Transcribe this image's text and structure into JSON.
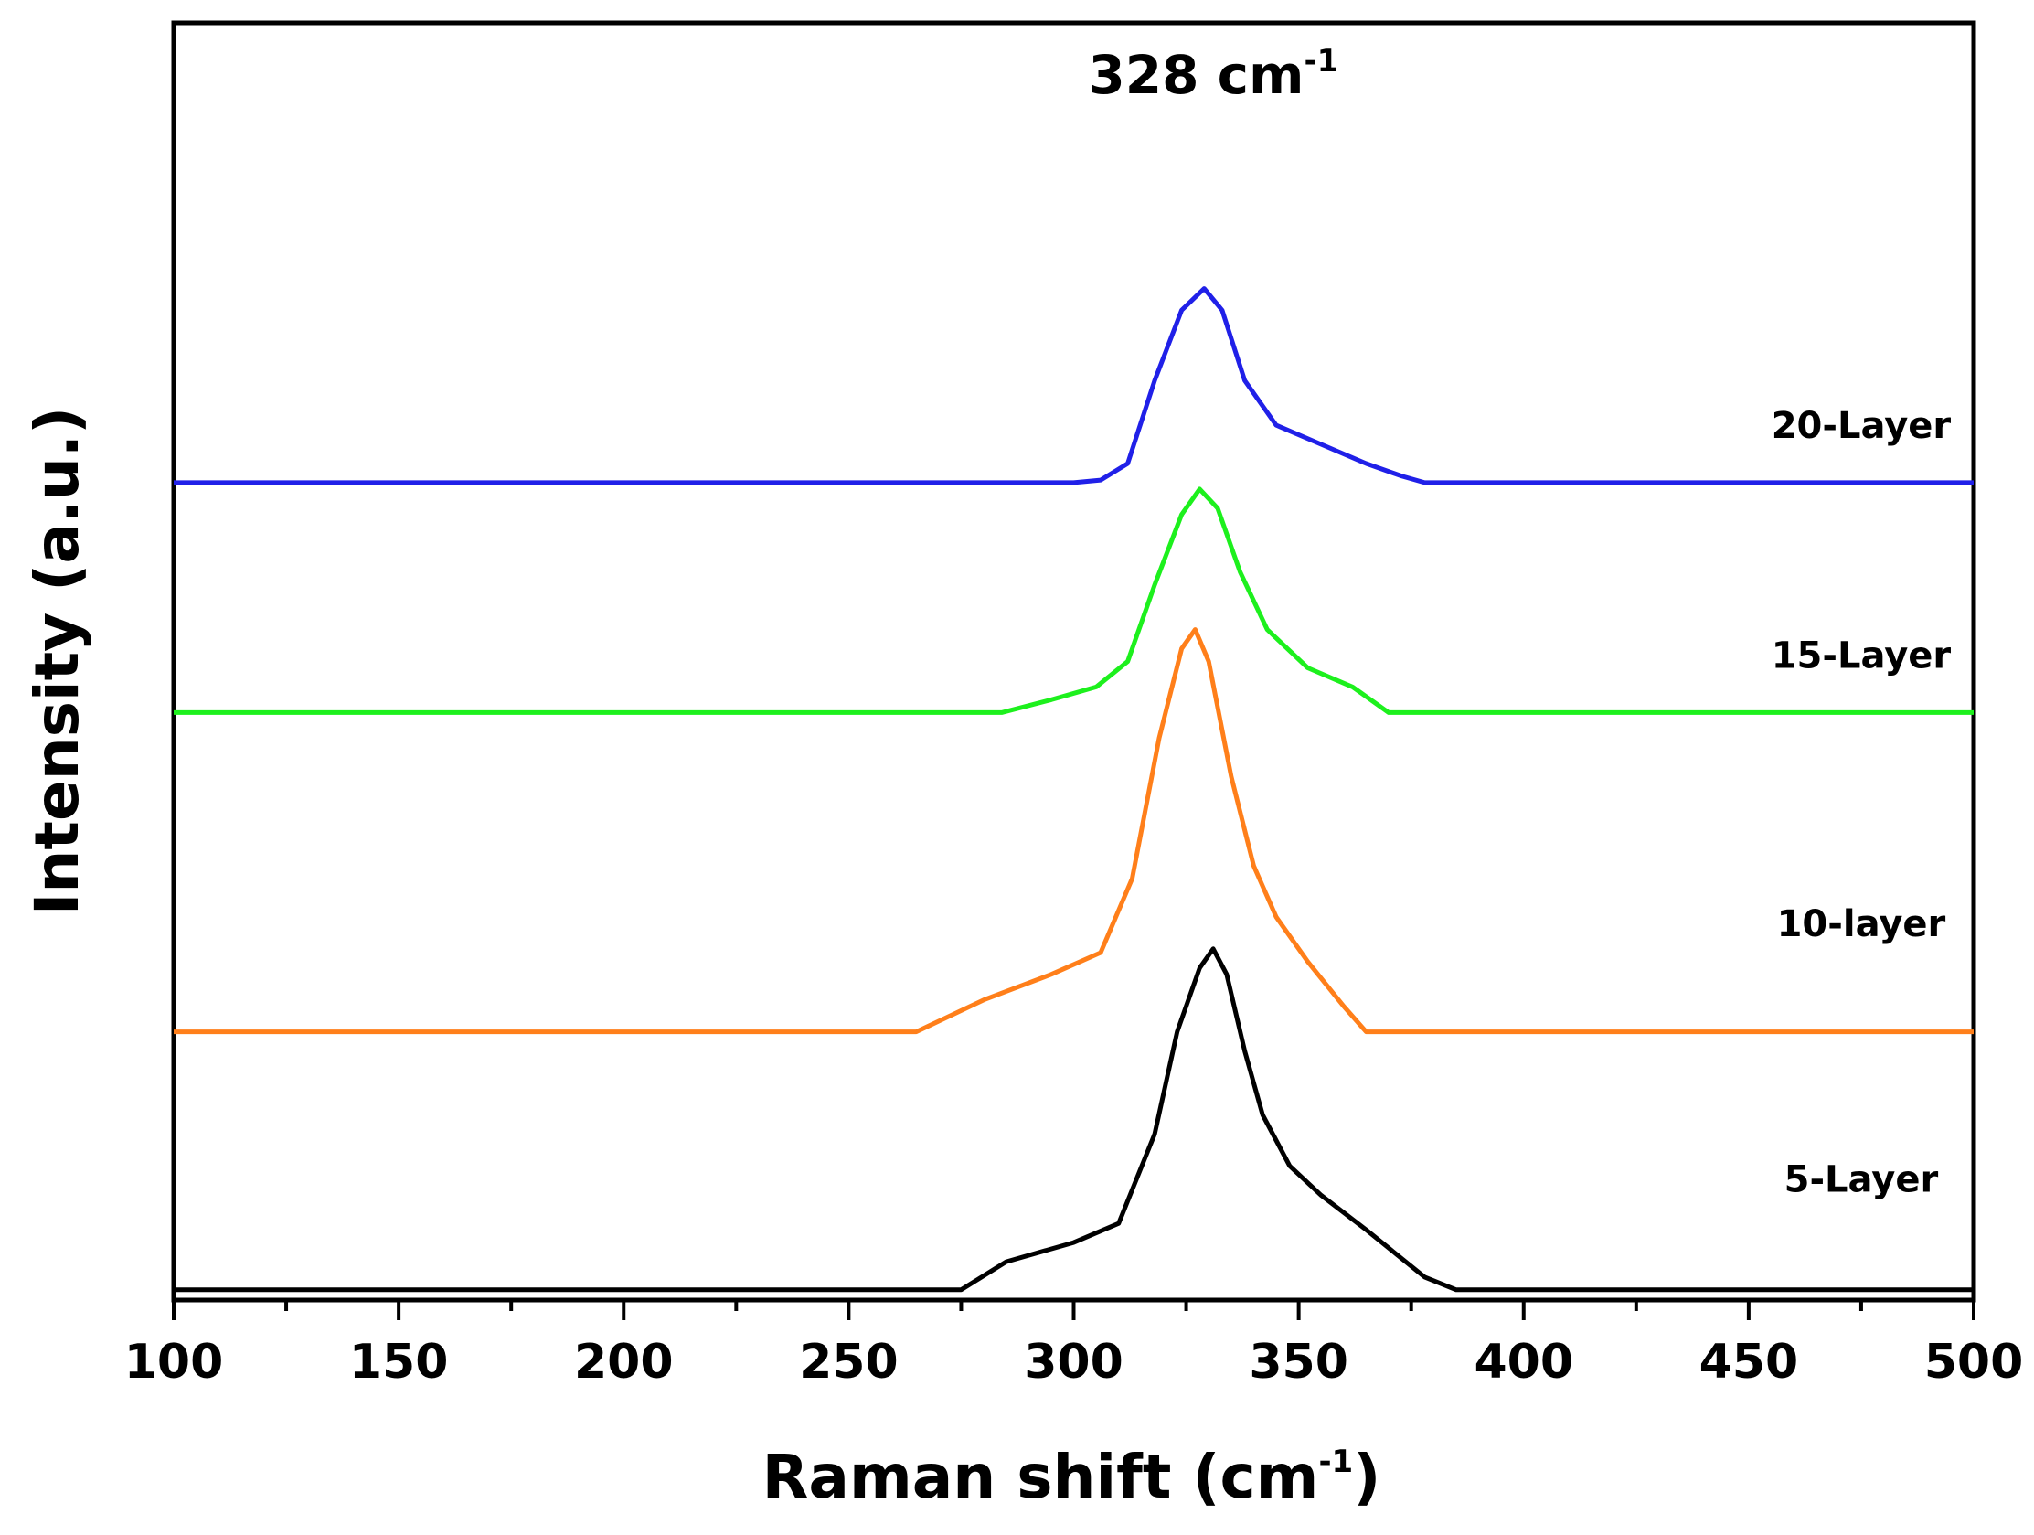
{
  "chart_data": {
    "type": "line",
    "title": "",
    "xlabel": "Raman shift (cm",
    "xlabel_sup": "-1",
    "xlabel_end": ")",
    "ylabel": "Intensity (a.u.)",
    "xlim": [
      100,
      500
    ],
    "ylim": [
      0,
      10
    ],
    "x_ticks": [
      100,
      150,
      200,
      250,
      300,
      350,
      400,
      450,
      500
    ],
    "x_tick_labels": [
      "100",
      "150",
      "200",
      "250",
      "300",
      "350",
      "400",
      "450",
      "500"
    ],
    "y_ticks_visible": false,
    "annotation": {
      "text": "328 cm",
      "sup": "-1",
      "x": 328,
      "y": 9.45
    },
    "series": [
      {
        "name": "5-Layer",
        "label": "5-Layer",
        "color": "#000000",
        "label_pos": {
          "x": 475,
          "y": 0.85
        },
        "points": [
          [
            100,
            0.08
          ],
          [
            150,
            0.08
          ],
          [
            200,
            0.08
          ],
          [
            250,
            0.08
          ],
          [
            275,
            0.08
          ],
          [
            285,
            0.3
          ],
          [
            300,
            0.45
          ],
          [
            310,
            0.6
          ],
          [
            318,
            1.3
          ],
          [
            323,
            2.1
          ],
          [
            328,
            2.6
          ],
          [
            331,
            2.75
          ],
          [
            334,
            2.55
          ],
          [
            338,
            1.95
          ],
          [
            342,
            1.45
          ],
          [
            348,
            1.05
          ],
          [
            355,
            0.82
          ],
          [
            365,
            0.55
          ],
          [
            378,
            0.18
          ],
          [
            385,
            0.08
          ],
          [
            400,
            0.08
          ],
          [
            450,
            0.08
          ],
          [
            500,
            0.08
          ]
        ]
      },
      {
        "name": "10-layer",
        "label": "10-layer",
        "color": "#ff7f1a",
        "label_pos": {
          "x": 475,
          "y": 2.85
        },
        "points": [
          [
            100,
            2.1
          ],
          [
            150,
            2.1
          ],
          [
            200,
            2.1
          ],
          [
            250,
            2.1
          ],
          [
            265,
            2.1
          ],
          [
            280,
            2.35
          ],
          [
            295,
            2.55
          ],
          [
            306,
            2.72
          ],
          [
            313,
            3.3
          ],
          [
            319,
            4.4
          ],
          [
            324,
            5.1
          ],
          [
            327,
            5.25
          ],
          [
            330,
            5.0
          ],
          [
            335,
            4.1
          ],
          [
            340,
            3.4
          ],
          [
            345,
            3.0
          ],
          [
            352,
            2.65
          ],
          [
            360,
            2.3
          ],
          [
            365,
            2.1
          ],
          [
            400,
            2.1
          ],
          [
            450,
            2.1
          ],
          [
            500,
            2.1
          ]
        ]
      },
      {
        "name": "15-Layer",
        "label": "15-Layer",
        "color": "#1df01d",
        "label_pos": {
          "x": 475,
          "y": 4.95
        },
        "points": [
          [
            100,
            4.6
          ],
          [
            150,
            4.6
          ],
          [
            200,
            4.6
          ],
          [
            250,
            4.6
          ],
          [
            284,
            4.6
          ],
          [
            295,
            4.7
          ],
          [
            305,
            4.8
          ],
          [
            312,
            5.0
          ],
          [
            318,
            5.6
          ],
          [
            324,
            6.15
          ],
          [
            328,
            6.35
          ],
          [
            332,
            6.2
          ],
          [
            337,
            5.7
          ],
          [
            343,
            5.25
          ],
          [
            352,
            4.95
          ],
          [
            362,
            4.8
          ],
          [
            370,
            4.6
          ],
          [
            400,
            4.6
          ],
          [
            450,
            4.6
          ],
          [
            500,
            4.6
          ]
        ]
      },
      {
        "name": "20-Layer",
        "label": "20-Layer",
        "color": "#2020e8",
        "label_pos": {
          "x": 475,
          "y": 6.75
        },
        "points": [
          [
            100,
            6.4
          ],
          [
            150,
            6.4
          ],
          [
            200,
            6.4
          ],
          [
            250,
            6.4
          ],
          [
            300,
            6.4
          ],
          [
            306,
            6.42
          ],
          [
            312,
            6.55
          ],
          [
            318,
            7.2
          ],
          [
            324,
            7.75
          ],
          [
            329,
            7.92
          ],
          [
            333,
            7.75
          ],
          [
            338,
            7.2
          ],
          [
            345,
            6.85
          ],
          [
            355,
            6.7
          ],
          [
            365,
            6.55
          ],
          [
            373,
            6.45
          ],
          [
            378,
            6.4
          ],
          [
            400,
            6.4
          ],
          [
            450,
            6.4
          ],
          [
            500,
            6.4
          ]
        ]
      }
    ]
  }
}
